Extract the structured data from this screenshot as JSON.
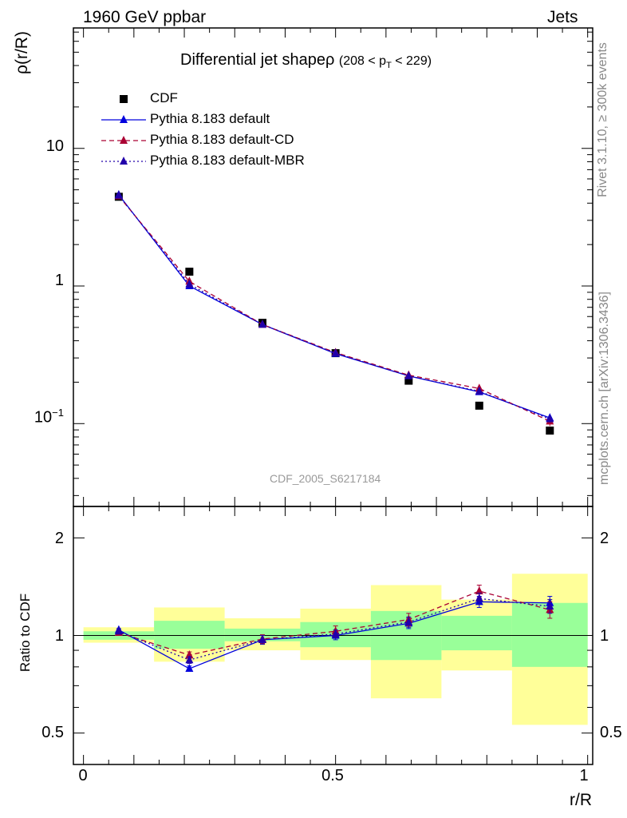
{
  "header": {
    "energy": "1960 GeV ppbar",
    "process": "Jets"
  },
  "side_labels": {
    "rivet": "Rivet 3.1.10, ≥ 300k events",
    "mcplots": "mcplots.cern.ch [arXiv:1306.3436]"
  },
  "chart_data": [
    {
      "type": "scatter",
      "title": "Differential jet shapeρ",
      "subtitle_prefix": "(208 < p",
      "subtitle_sub": "T",
      "subtitle_suffix": " < 229)",
      "ylabel": "ρ(r/R)",
      "yscale": "log",
      "ylim": [
        0.025,
        75
      ],
      "xlim": [
        -0.02,
        1.01
      ],
      "yticks": [
        {
          "value": 10,
          "label": "10"
        },
        {
          "value": 1,
          "label": "1"
        },
        {
          "value": 0.1,
          "label": "10",
          "exp": "−1"
        }
      ],
      "watermark": "CDF_2005_S6217184",
      "legend": {
        "position": "top-left",
        "entries": [
          "CDF",
          "Pythia 8.183 default",
          "Pythia 8.183 default-CD",
          "Pythia 8.183 default-MBR"
        ]
      },
      "x": [
        0.07,
        0.21,
        0.355,
        0.5,
        0.645,
        0.785,
        0.925
      ],
      "series": [
        {
          "name": "CDF",
          "color": "#000000",
          "marker": "square",
          "line": "none",
          "values": [
            4.45,
            1.27,
            0.54,
            0.325,
            0.205,
            0.135,
            0.089
          ]
        },
        {
          "name": "Pythia 8.183 default",
          "color": "#0000dd",
          "marker": "triangle",
          "line": "solid",
          "values": [
            4.6,
            1.0,
            0.525,
            0.322,
            0.222,
            0.17,
            0.11
          ],
          "errors": [
            0.05,
            0.012,
            0.006,
            0.007,
            0.008,
            0.007,
            0.006
          ]
        },
        {
          "name": "Pythia 8.183 default-CD",
          "color": "#aa0033",
          "marker": "triangle",
          "line": "dashed",
          "values": [
            4.5,
            1.08,
            0.525,
            0.328,
            0.225,
            0.18,
            0.104
          ],
          "errors": [
            0.05,
            0.015,
            0.008,
            0.01,
            0.015,
            0.012,
            0.008
          ]
        },
        {
          "name": "Pythia 8.183 default-MBR",
          "color": "#2200aa",
          "marker": "triangle",
          "line": "dotted",
          "values": [
            4.55,
            1.03,
            0.525,
            0.325,
            0.222,
            0.172,
            0.108
          ],
          "errors": [
            0.05,
            0.012,
            0.006,
            0.008,
            0.01,
            0.008,
            0.006
          ]
        }
      ]
    },
    {
      "type": "scatter",
      "ylabel": "Ratio to CDF",
      "xlabel": "r/R",
      "yscale": "log",
      "ylim": [
        0.4,
        2.5
      ],
      "xlim": [
        -0.02,
        1.01
      ],
      "yticks": [
        {
          "value": 2,
          "label": "2"
        },
        {
          "value": 1,
          "label": "1"
        },
        {
          "value": 0.5,
          "label": "0.5"
        }
      ],
      "xticks": [
        {
          "value": 0,
          "label": "0"
        },
        {
          "value": 0.5,
          "label": "0.5"
        },
        {
          "value": 1,
          "label": "1"
        }
      ],
      "bands": {
        "bin_edges": [
          0,
          0.14,
          0.28,
          0.43,
          0.57,
          0.71,
          0.85,
          1.0
        ],
        "stat_color": "#99ff99",
        "total_color": "#ffff99",
        "stat": [
          [
            0.97,
            1.03
          ],
          [
            0.91,
            1.11
          ],
          [
            0.96,
            1.05
          ],
          [
            0.92,
            1.1
          ],
          [
            0.84,
            1.19
          ],
          [
            0.9,
            1.15
          ],
          [
            0.8,
            1.26
          ]
        ],
        "total": [
          [
            0.95,
            1.06
          ],
          [
            0.83,
            1.22
          ],
          [
            0.9,
            1.13
          ],
          [
            0.84,
            1.21
          ],
          [
            0.64,
            1.43
          ],
          [
            0.78,
            1.29
          ],
          [
            0.53,
            1.55
          ]
        ]
      },
      "x": [
        0.07,
        0.21,
        0.355,
        0.5,
        0.645,
        0.785,
        0.925
      ],
      "series": [
        {
          "name": "Pythia 8.183 default",
          "color": "#0000dd",
          "line": "solid",
          "values": [
            1.04,
            0.79,
            0.97,
            1.0,
            1.09,
            1.27,
            1.26
          ],
          "errors": [
            0.01,
            0.015,
            0.03,
            0.03,
            0.04,
            0.05,
            0.06
          ]
        },
        {
          "name": "Pythia 8.183 default-CD",
          "color": "#aa0033",
          "line": "dashed",
          "values": [
            1.02,
            0.87,
            0.975,
            1.03,
            1.12,
            1.37,
            1.2
          ],
          "errors": [
            0.01,
            0.02,
            0.03,
            0.04,
            0.05,
            0.06,
            0.07
          ]
        },
        {
          "name": "Pythia 8.183 default-MBR",
          "color": "#2200aa",
          "line": "dotted",
          "values": [
            1.03,
            0.84,
            0.97,
            1.01,
            1.1,
            1.3,
            1.23
          ],
          "errors": [
            0.01,
            0.02,
            0.03,
            0.03,
            0.04,
            0.05,
            0.06
          ]
        }
      ]
    }
  ]
}
